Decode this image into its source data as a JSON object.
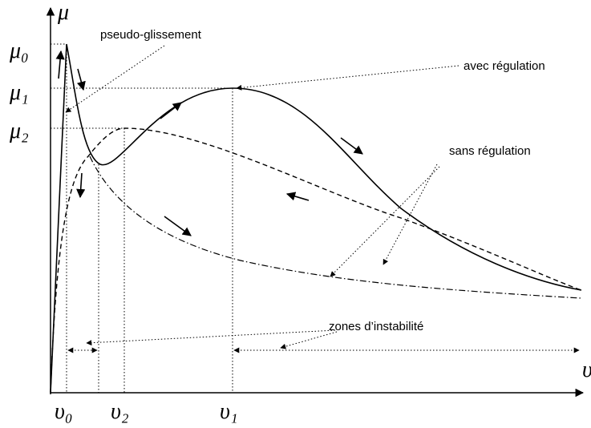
{
  "axis_labels": {
    "y": "μ",
    "x": "υ"
  },
  "y_labels": [
    "μ₀",
    "μ₁",
    "μ₂"
  ],
  "x_labels": [
    "υ₀",
    "υ₂",
    "υ₁"
  ],
  "annotations": {
    "pseudo": "pseudo-glissement",
    "avec": "avec régulation",
    "sans": "sans régulation",
    "zones": "zones d’instabilité"
  }
}
